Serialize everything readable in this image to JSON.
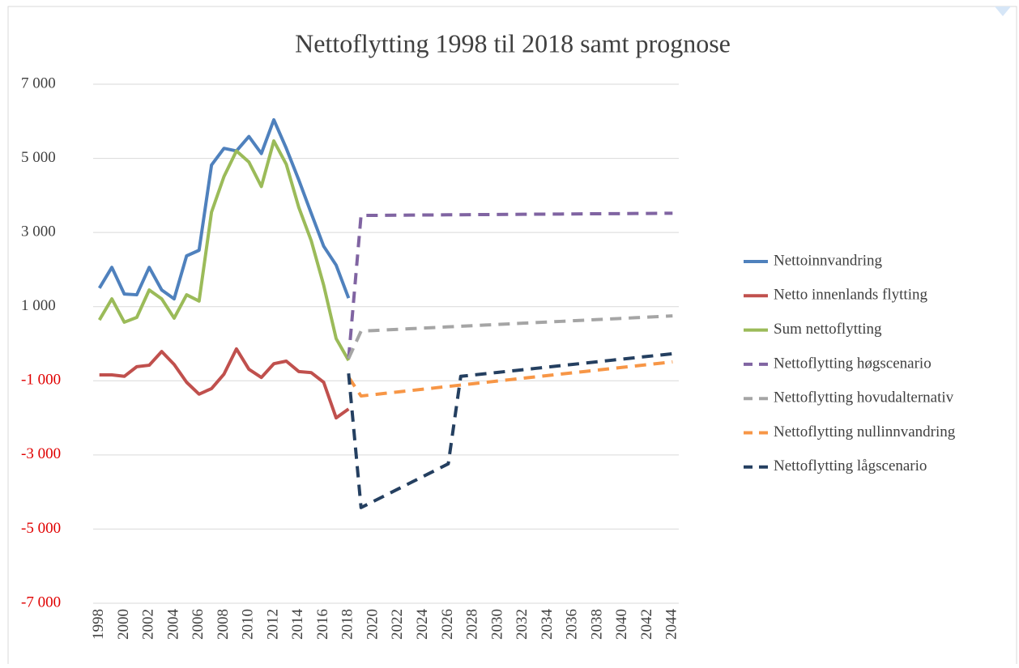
{
  "chart_data": {
    "type": "line",
    "title": "Nettoflytting 1998 til 2018 samt prognose",
    "x": [
      1998,
      1999,
      2000,
      2001,
      2002,
      2003,
      2004,
      2005,
      2006,
      2007,
      2008,
      2009,
      2010,
      2011,
      2012,
      2013,
      2014,
      2015,
      2016,
      2017,
      2018,
      2019,
      2020,
      2021,
      2022,
      2023,
      2024,
      2025,
      2026,
      2027,
      2028,
      2029,
      2030,
      2031,
      2032,
      2033,
      2034,
      2035,
      2036,
      2037,
      2038,
      2039,
      2040,
      2041,
      2042,
      2043,
      2044
    ],
    "xlim": [
      1997.5,
      2044.5
    ],
    "xticks": [
      1998,
      2000,
      2002,
      2004,
      2006,
      2008,
      2010,
      2012,
      2014,
      2016,
      2018,
      2020,
      2022,
      2024,
      2026,
      2028,
      2030,
      2032,
      2034,
      2036,
      2038,
      2040,
      2042,
      2044
    ],
    "ylim": [
      -7000,
      7000
    ],
    "yticks": [
      {
        "value": -7000,
        "label": "-7 000"
      },
      {
        "value": -5000,
        "label": "-5 000"
      },
      {
        "value": -3000,
        "label": "-3 000"
      },
      {
        "value": -1000,
        "label": "-1 000"
      },
      {
        "value": 1000,
        "label": "1 000"
      },
      {
        "value": 3000,
        "label": "3 000"
      },
      {
        "value": 5000,
        "label": "5 000"
      },
      {
        "value": 7000,
        "label": "7 000"
      }
    ],
    "negative_tick_label_color": "#e00000",
    "grid": true,
    "legend": "right",
    "series": [
      {
        "name": "Nettoinnvandring",
        "color": "#4f81bd",
        "style": "solid",
        "values": [
          1500,
          2060,
          1340,
          1320,
          2060,
          1450,
          1210,
          2370,
          2520,
          4820,
          5270,
          5200,
          5590,
          5130,
          6040,
          5270,
          4420,
          3520,
          2630,
          2120,
          1230,
          null,
          null,
          null,
          null,
          null,
          null,
          null,
          null,
          null,
          null,
          null,
          null,
          null,
          null,
          null,
          null,
          null,
          null,
          null,
          null,
          null,
          null,
          null,
          null,
          null,
          null
        ]
      },
      {
        "name": "Netto innenlands flytting",
        "color": "#c0504d",
        "style": "solid",
        "values": [
          -840,
          -840,
          -880,
          -620,
          -580,
          -210,
          -560,
          -1040,
          -1360,
          -1210,
          -820,
          -140,
          -690,
          -910,
          -540,
          -470,
          -750,
          -780,
          -1040,
          -2000,
          -1760,
          null,
          null,
          null,
          null,
          null,
          null,
          null,
          null,
          null,
          null,
          null,
          null,
          null,
          null,
          null,
          null,
          null,
          null,
          null,
          null,
          null,
          null,
          null,
          null,
          null,
          null
        ]
      },
      {
        "name": "Sum nettoflytting",
        "color": "#9bbb59",
        "style": "solid",
        "values": [
          640,
          1210,
          580,
          710,
          1450,
          1210,
          690,
          1320,
          1150,
          3550,
          4510,
          5200,
          4900,
          4240,
          5470,
          4840,
          3680,
          2780,
          1580,
          140,
          -450,
          null,
          null,
          null,
          null,
          null,
          null,
          null,
          null,
          null,
          null,
          null,
          null,
          null,
          null,
          null,
          null,
          null,
          null,
          null,
          null,
          null,
          null,
          null,
          null,
          null,
          null
        ]
      },
      {
        "name": "Nettoflytting høgscenario",
        "color": "#8064a2",
        "style": "dashed",
        "values": [
          null,
          null,
          null,
          null,
          null,
          null,
          null,
          null,
          null,
          null,
          null,
          null,
          null,
          null,
          null,
          null,
          null,
          null,
          null,
          null,
          -400,
          3460,
          3462,
          3465,
          3467,
          3470,
          3472,
          3474,
          3477,
          3479,
          3482,
          3484,
          3486,
          3489,
          3491,
          3494,
          3496,
          3498,
          3501,
          3503,
          3506,
          3508,
          3510,
          3513,
          3515,
          3518,
          3520
        ]
      },
      {
        "name": "Nettoflytting hovudalternativ",
        "color": "#a5a5a5",
        "style": "dashed",
        "values": [
          null,
          null,
          null,
          null,
          null,
          null,
          null,
          null,
          null,
          null,
          null,
          null,
          null,
          null,
          null,
          null,
          null,
          null,
          null,
          null,
          -400,
          340,
          356,
          373,
          389,
          406,
          422,
          438,
          455,
          471,
          488,
          504,
          520,
          537,
          553,
          570,
          586,
          602,
          619,
          635,
          652,
          668,
          684,
          701,
          717,
          734,
          750
        ]
      },
      {
        "name": "Nettoflytting nullinnvandring",
        "color": "#f79646",
        "style": "dashed",
        "values": [
          null,
          null,
          null,
          null,
          null,
          null,
          null,
          null,
          null,
          null,
          null,
          null,
          null,
          null,
          null,
          null,
          null,
          null,
          null,
          null,
          -900,
          -1410,
          -1373,
          -1336,
          -1299,
          -1262,
          -1226,
          -1189,
          -1152,
          -1115,
          -1078,
          -1042,
          -1005,
          -968,
          -931,
          -894,
          -858,
          -821,
          -784,
          -747,
          -710,
          -674,
          -637,
          -600,
          -563,
          -526,
          -490
        ]
      },
      {
        "name": "Nettoflytting lågscenario",
        "color": "#243f60",
        "style": "dashed",
        "values": [
          null,
          null,
          null,
          null,
          null,
          null,
          null,
          null,
          null,
          null,
          null,
          null,
          null,
          null,
          null,
          null,
          null,
          null,
          null,
          null,
          -800,
          -4420,
          -4251,
          -4083,
          -3914,
          -3746,
          -3577,
          -3409,
          -3240,
          -880,
          -844,
          -808,
          -772,
          -736,
          -701,
          -665,
          -629,
          -593,
          -557,
          -521,
          -485,
          -449,
          -413,
          -378,
          -342,
          -306,
          -270
        ]
      }
    ]
  }
}
